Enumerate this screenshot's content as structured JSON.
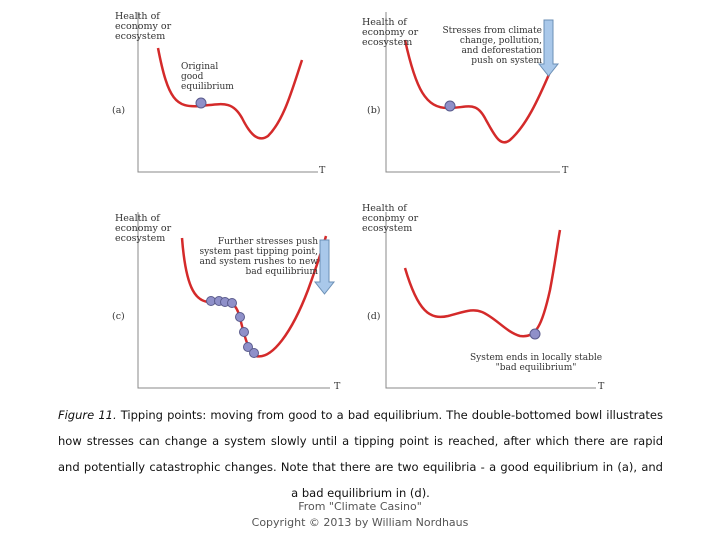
{
  "panels": {
    "a": {
      "tag": "(a)",
      "ylabel": "Health of\neconomy or\necosystem",
      "xlabel": "T",
      "annotation": "Original\ngood\nequilibrium"
    },
    "b": {
      "tag": "(b)",
      "ylabel": "Health of\neconomy or\necosystem",
      "xlabel": "T",
      "annotation": "Stresses from climate\nchange, pollution,\nand deforestation\npush on system"
    },
    "c": {
      "tag": "(c)",
      "ylabel": "Health of\neconomy or\necosystem",
      "xlabel": "T",
      "annotation": "Further stresses push\nsystem past tipping point,\nand system rushes to new\nbad equilibrium"
    },
    "d": {
      "tag": "(d)",
      "ylabel": "Health of\neconomy or\necosystem",
      "xlabel": "T",
      "annotation": "System ends in locally stable\n\"bad equilibrium\""
    }
  },
  "caption": {
    "lead": "Figure 11.",
    "text": "Tipping points: moving from good to a bad equilibrium. The double-bottomed bowl illustrates how stresses can change a system slowly until a tipping point is reached, after which there are rapid and potentially catastrophic changes. Note that there are two equilibria - a good equilibrium in (a), and a bad equilibrium in (d)."
  },
  "credit": {
    "line1": "From \"Climate Casino\"",
    "line2": "Copyright © 2013 by William Nordhaus"
  },
  "colors": {
    "curve": "#d42a2a",
    "ball_fill": "#8f90c9",
    "ball_stroke": "#5a5b8c",
    "arrow_fill": "#a9c8ea",
    "arrow_stroke": "#6b8fb5",
    "axis": "#666666"
  }
}
